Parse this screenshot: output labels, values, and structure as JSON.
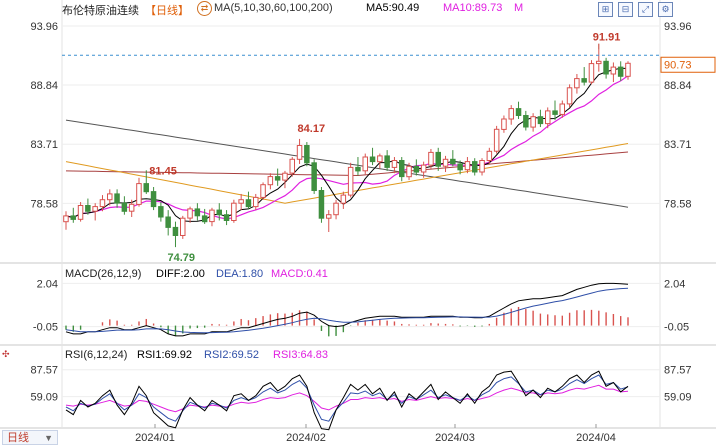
{
  "header": {
    "title": "布伦特原油连续",
    "period": "【日线】",
    "ma_params": "MA(5,10,30,60,100,200)",
    "ma5": "MA5:90.49",
    "ma10": "MA10:89.73",
    "more": "M"
  },
  "toolbar": {
    "icons": [
      "zoom-in-icon",
      "zoom-out-icon",
      "expand-icon",
      "settings-icon"
    ]
  },
  "price_panel": {
    "y_ticks": [
      "93.96",
      "88.84",
      "83.71",
      "78.58"
    ],
    "current_price": "90.73",
    "annotations": {
      "high": "91.91",
      "mid_high": "84.17",
      "prev_level": "81.45",
      "low": "74.79"
    }
  },
  "macd_panel": {
    "label": "MACD(26,12,9)",
    "diff": "DIFF:2.00",
    "dea": "DEA:1.80",
    "macd": "MACD:0.41",
    "y_ticks": [
      "2.04",
      "-0.05"
    ]
  },
  "rsi_panel": {
    "label": "RSI(6,12,24)",
    "rsi1": "RSI1:69.92",
    "rsi2": "RSI2:69.52",
    "rsi3": "RSI3:64.83",
    "y_ticks": [
      "87.57",
      "59.09"
    ]
  },
  "footer": {
    "period_button": "日线",
    "dates": [
      "2024/01",
      "2024/02",
      "2024/03",
      "2024/04"
    ]
  },
  "colors": {
    "up": "#d9534f",
    "down": "#3f8f3f",
    "ma5": "#000000",
    "ma10": "#e020e0",
    "ma30": "#e09a20",
    "ma60": "#a84040",
    "ma100": "#505050",
    "blue": "#2f4fa8"
  },
  "chart_data": {
    "type": "candlestick",
    "x": [
      "2024/01",
      "2024/02",
      "2024/03",
      "2024/04"
    ],
    "price_range": [
      73.5,
      95.0
    ],
    "ohlc": [
      [
        77.0,
        77.9,
        76.3,
        77.5
      ],
      [
        77.5,
        78.2,
        76.9,
        77.2
      ],
      [
        77.2,
        78.7,
        77.0,
        78.4
      ],
      [
        78.4,
        79.0,
        77.6,
        77.9
      ],
      [
        77.9,
        78.6,
        77.1,
        78.3
      ],
      [
        78.3,
        79.3,
        77.9,
        78.9
      ],
      [
        78.9,
        79.8,
        78.4,
        79.4
      ],
      [
        79.4,
        79.8,
        78.2,
        78.6
      ],
      [
        78.6,
        79.2,
        77.6,
        77.9
      ],
      [
        77.9,
        78.9,
        77.4,
        78.5
      ],
      [
        78.5,
        80.8,
        78.3,
        80.3
      ],
      [
        80.3,
        81.45,
        79.4,
        79.6
      ],
      [
        79.6,
        80.0,
        78.0,
        78.3
      ],
      [
        78.3,
        78.7,
        77.0,
        77.4
      ],
      [
        77.4,
        78.0,
        75.8,
        76.5
      ],
      [
        76.5,
        77.0,
        74.79,
        75.8
      ],
      [
        75.8,
        77.5,
        75.5,
        77.3
      ],
      [
        77.3,
        78.3,
        76.9,
        78.1
      ],
      [
        78.1,
        78.6,
        77.1,
        77.5
      ],
      [
        77.5,
        78.1,
        76.8,
        77.0
      ],
      [
        77.0,
        78.2,
        76.6,
        78.0
      ],
      [
        78.0,
        78.6,
        77.1,
        77.6
      ],
      [
        77.6,
        78.0,
        76.7,
        77.1
      ],
      [
        77.1,
        78.9,
        76.9,
        78.6
      ],
      [
        78.6,
        79.4,
        78.0,
        78.9
      ],
      [
        78.9,
        79.6,
        78.1,
        78.3
      ],
      [
        78.3,
        79.4,
        78.0,
        79.1
      ],
      [
        79.1,
        80.4,
        78.9,
        80.2
      ],
      [
        80.2,
        81.2,
        79.8,
        80.9
      ],
      [
        80.9,
        81.6,
        80.1,
        80.6
      ],
      [
        80.6,
        81.4,
        79.9,
        81.2
      ],
      [
        81.2,
        82.6,
        80.9,
        82.4
      ],
      [
        82.4,
        84.17,
        82.0,
        83.6
      ],
      [
        83.6,
        83.9,
        81.8,
        82.1
      ],
      [
        82.1,
        82.4,
        79.4,
        79.7
      ],
      [
        79.7,
        80.0,
        76.9,
        77.3
      ],
      [
        77.3,
        78.0,
        76.1,
        77.6
      ],
      [
        77.6,
        78.9,
        77.2,
        78.6
      ],
      [
        78.6,
        79.6,
        78.1,
        79.3
      ],
      [
        79.3,
        82.1,
        79.1,
        81.7
      ],
      [
        81.7,
        82.6,
        81.0,
        81.4
      ],
      [
        81.4,
        82.9,
        81.1,
        82.6
      ],
      [
        82.6,
        83.4,
        81.9,
        82.2
      ],
      [
        82.2,
        82.9,
        81.6,
        82.7
      ],
      [
        82.7,
        83.2,
        81.4,
        81.7
      ],
      [
        81.7,
        82.6,
        81.2,
        82.3
      ],
      [
        82.3,
        82.6,
        80.5,
        80.9
      ],
      [
        80.9,
        82.1,
        80.6,
        81.8
      ],
      [
        81.8,
        82.4,
        81.0,
        81.3
      ],
      [
        81.3,
        82.2,
        80.8,
        81.9
      ],
      [
        81.9,
        83.3,
        81.6,
        83.0
      ],
      [
        83.0,
        83.4,
        81.4,
        81.8
      ],
      [
        81.8,
        82.7,
        81.3,
        82.4
      ],
      [
        82.4,
        83.2,
        81.8,
        82.0
      ],
      [
        82.0,
        82.3,
        81.1,
        81.5
      ],
      [
        81.5,
        82.6,
        81.2,
        82.2
      ],
      [
        82.2,
        82.5,
        81.0,
        81.3
      ],
      [
        81.3,
        82.5,
        81.0,
        82.3
      ],
      [
        82.3,
        83.4,
        82.0,
        83.1
      ],
      [
        83.1,
        85.3,
        82.9,
        85.0
      ],
      [
        85.0,
        86.2,
        84.7,
        85.9
      ],
      [
        85.9,
        87.1,
        85.4,
        86.8
      ],
      [
        86.8,
        87.4,
        85.9,
        86.2
      ],
      [
        86.2,
        86.6,
        84.9,
        85.2
      ],
      [
        85.2,
        86.4,
        84.8,
        86.1
      ],
      [
        86.1,
        86.7,
        85.2,
        85.5
      ],
      [
        85.5,
        86.9,
        85.1,
        86.6
      ],
      [
        86.6,
        87.5,
        85.8,
        86.3
      ],
      [
        86.3,
        87.5,
        86.0,
        87.2
      ],
      [
        87.2,
        88.9,
        86.9,
        88.6
      ],
      [
        88.6,
        89.8,
        88.1,
        89.4
      ],
      [
        89.4,
        90.4,
        88.8,
        89.1
      ],
      [
        89.1,
        91.0,
        88.9,
        90.7
      ],
      [
        90.7,
        91.91,
        90.0,
        90.9
      ],
      [
        90.9,
        91.2,
        89.4,
        89.8
      ],
      [
        89.8,
        90.8,
        89.1,
        90.4
      ],
      [
        90.4,
        90.9,
        89.2,
        89.6
      ],
      [
        89.6,
        90.9,
        89.3,
        90.73
      ]
    ],
    "macd": {
      "diff": [
        -0.3,
        -0.4,
        -0.4,
        -0.3,
        -0.3,
        -0.2,
        -0.1,
        -0.1,
        -0.2,
        -0.2,
        -0.1,
        0.0,
        -0.1,
        -0.2,
        -0.4,
        -0.5,
        -0.5,
        -0.4,
        -0.4,
        -0.4,
        -0.3,
        -0.3,
        -0.3,
        -0.2,
        -0.1,
        -0.1,
        0.0,
        0.1,
        0.2,
        0.3,
        0.35,
        0.45,
        0.6,
        0.65,
        0.5,
        0.2,
        0.0,
        -0.05,
        0.0,
        0.15,
        0.25,
        0.35,
        0.4,
        0.45,
        0.45,
        0.45,
        0.4,
        0.4,
        0.4,
        0.4,
        0.45,
        0.45,
        0.45,
        0.45,
        0.4,
        0.4,
        0.38,
        0.38,
        0.45,
        0.65,
        0.85,
        1.05,
        1.2,
        1.25,
        1.3,
        1.3,
        1.35,
        1.4,
        1.45,
        1.6,
        1.75,
        1.85,
        1.95,
        2.02,
        2.04,
        2.04,
        2.02,
        2.0
      ],
      "dea": [
        -0.2,
        -0.25,
        -0.3,
        -0.3,
        -0.3,
        -0.28,
        -0.25,
        -0.22,
        -0.22,
        -0.22,
        -0.2,
        -0.16,
        -0.15,
        -0.16,
        -0.2,
        -0.26,
        -0.31,
        -0.33,
        -0.34,
        -0.35,
        -0.34,
        -0.33,
        -0.32,
        -0.3,
        -0.26,
        -0.23,
        -0.18,
        -0.13,
        -0.07,
        0.0,
        0.06,
        0.14,
        0.23,
        0.31,
        0.35,
        0.33,
        0.26,
        0.2,
        0.16,
        0.16,
        0.18,
        0.22,
        0.26,
        0.3,
        0.33,
        0.35,
        0.36,
        0.37,
        0.38,
        0.38,
        0.39,
        0.4,
        0.41,
        0.42,
        0.42,
        0.41,
        0.41,
        0.4,
        0.41,
        0.46,
        0.54,
        0.64,
        0.75,
        0.85,
        0.94,
        1.01,
        1.08,
        1.15,
        1.21,
        1.29,
        1.38,
        1.48,
        1.57,
        1.66,
        1.72,
        1.76,
        1.79,
        1.8
      ],
      "hist_scale": 2.0
    },
    "rsi": {
      "rsi1": [
        45,
        40,
        55,
        48,
        52,
        60,
        66,
        50,
        40,
        52,
        70,
        60,
        42,
        35,
        28,
        26,
        45,
        58,
        50,
        44,
        55,
        50,
        44,
        60,
        62,
        55,
        60,
        70,
        74,
        65,
        70,
        78,
        82,
        70,
        42,
        25,
        24,
        45,
        58,
        72,
        66,
        72,
        62,
        68,
        55,
        64,
        48,
        62,
        56,
        64,
        72,
        56,
        64,
        58,
        52,
        62,
        52,
        64,
        70,
        82,
        85,
        86,
        74,
        60,
        66,
        58,
        68,
        64,
        70,
        78,
        82,
        74,
        82,
        86,
        70,
        74,
        64,
        70
      ],
      "rsi2": [
        48,
        44,
        52,
        49,
        51,
        57,
        62,
        52,
        45,
        50,
        62,
        58,
        48,
        42,
        36,
        33,
        44,
        53,
        50,
        47,
        52,
        50,
        47,
        55,
        58,
        55,
        58,
        64,
        68,
        63,
        66,
        72,
        76,
        68,
        50,
        35,
        33,
        45,
        53,
        63,
        62,
        65,
        60,
        63,
        56,
        61,
        52,
        59,
        56,
        61,
        66,
        58,
        61,
        58,
        55,
        60,
        55,
        61,
        65,
        74,
        78,
        80,
        73,
        64,
        66,
        61,
        66,
        64,
        67,
        73,
        77,
        73,
        78,
        82,
        72,
        74,
        67,
        69.5
      ],
      "rsi3": [
        50,
        49,
        51,
        50,
        51,
        53,
        55,
        52,
        49,
        50,
        55,
        54,
        51,
        48,
        45,
        43,
        46,
        50,
        49,
        48,
        50,
        49,
        48,
        51,
        53,
        52,
        53,
        56,
        58,
        57,
        58,
        61,
        63,
        60,
        54,
        47,
        45,
        49,
        52,
        56,
        56,
        58,
        57,
        58,
        56,
        57,
        54,
        56,
        55,
        57,
        59,
        57,
        58,
        57,
        55,
        57,
        55,
        57,
        59,
        63,
        66,
        68,
        66,
        63,
        63,
        61,
        63,
        62,
        63,
        66,
        68,
        67,
        69,
        71,
        67,
        67,
        64,
        64.8
      ],
      "range": [
        30,
        100
      ]
    }
  }
}
